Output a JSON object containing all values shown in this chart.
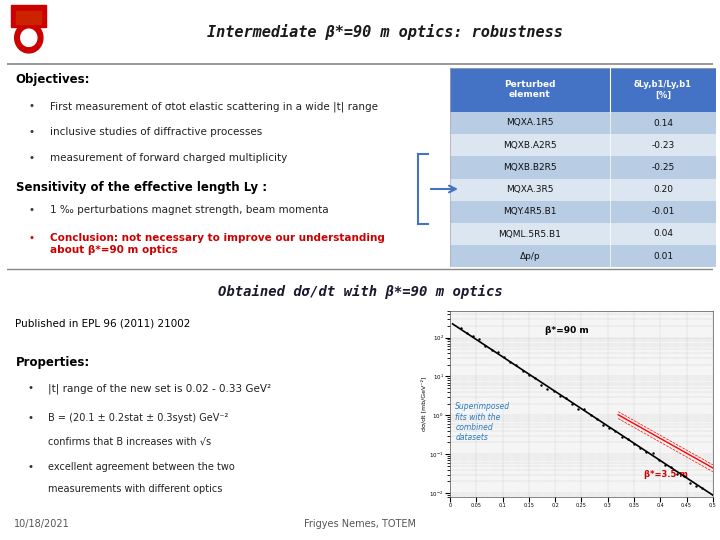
{
  "title": "Intermediate β*=90 m optics: robustness",
  "bg_color": "#ffffff",
  "header_bg": "#4472c4",
  "row_bg_alt": "#b8cce4",
  "row_bg_light": "#dce6f1",
  "table_header": [
    "Perturbed\nelement",
    "δLy,b1/Ly,b1\n[%]"
  ],
  "table_rows": [
    [
      "MQXA.1R5",
      "0.14"
    ],
    [
      "MQXB.A2R5",
      "-0.23"
    ],
    [
      "MQXB.B2R5",
      "-0.25"
    ],
    [
      "MQXA.3R5",
      "0.20"
    ],
    [
      "MQY.4R5.B1",
      "-0.01"
    ],
    [
      "MQML.5R5.B1",
      "0.04"
    ],
    [
      "Δp/p",
      "0.01"
    ]
  ],
  "objectives_title": "Objectives:",
  "objectives_bullets": [
    "First measurement of σtot elastic scattering in a wide |t| range",
    "inclusive studies of diffractive processes",
    "measurement of forward charged multiplicity"
  ],
  "sensitivity_title": "Sensitivity of the effective length Ly :",
  "sensitivity_bullet": "1 ‰ perturbations magnet strength, beam momenta",
  "conclusion_text": "Conclusion: not necessary to improve our understanding\nabout β*=90 m optics",
  "subtitle2": "Obtained dσ/dt with β*=90 m optics",
  "published": "Published in EPL 96 (2011) 21002",
  "properties_title": "Properties:",
  "prop1": "|t| range of the new set is 0.02 - 0.33 GeV²",
  "prop2a": "B = (20.1 ± 0.2",
  "prop2b": "stat",
  "prop2c": " ± 0.3",
  "prop2d": "syst",
  "prop2e": ") GeV⁻²",
  "prop2f": "    confirms that B increases with √s",
  "prop3a": "excellent agreement between the two",
  "prop3b": "measurements with different optics",
  "footer_left": "10/18/2021",
  "footer_center": "Frigyes Nemes, TOTEM",
  "plot_label_90": "β*=90 m",
  "plot_label_35": "β*=3.5 m",
  "plot_annot": "Superimposed\nfits with the\ncombined\ndatasets"
}
